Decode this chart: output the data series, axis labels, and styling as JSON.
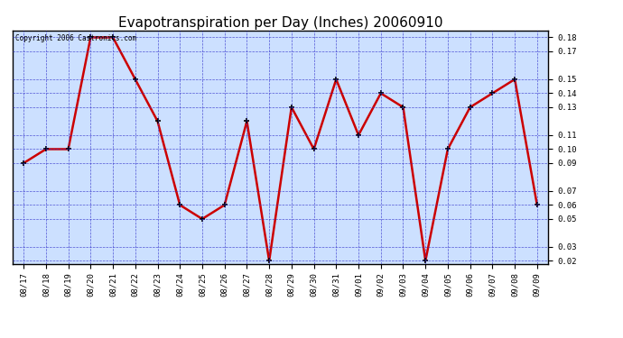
{
  "title": "Evapotranspiration per Day (Inches) 20060910",
  "copyright_text": "Copyright 2006 Castronics.com",
  "x_labels": [
    "08/17",
    "08/18",
    "08/19",
    "08/20",
    "08/21",
    "08/22",
    "08/23",
    "08/24",
    "08/25",
    "08/26",
    "08/27",
    "08/28",
    "08/29",
    "08/30",
    "08/31",
    "09/01",
    "09/02",
    "09/03",
    "09/04",
    "09/05",
    "09/06",
    "09/07",
    "09/08",
    "09/09"
  ],
  "y_values": [
    0.09,
    0.1,
    0.1,
    0.18,
    0.18,
    0.15,
    0.12,
    0.06,
    0.05,
    0.06,
    0.12,
    0.02,
    0.13,
    0.1,
    0.15,
    0.11,
    0.14,
    0.13,
    0.02,
    0.1,
    0.13,
    0.14,
    0.15,
    0.06
  ],
  "line_color": "#cc0000",
  "marker_color": "#000000",
  "bg_color": "#ffffff",
  "plot_bg_color": "#cce0ff",
  "grid_color": "#3333cc",
  "title_fontsize": 11,
  "ylim_min": 0.02,
  "ylim_max": 0.185,
  "yticks": [
    0.02,
    0.03,
    0.05,
    0.06,
    0.07,
    0.09,
    0.1,
    0.11,
    0.13,
    0.14,
    0.15,
    0.17,
    0.18
  ]
}
